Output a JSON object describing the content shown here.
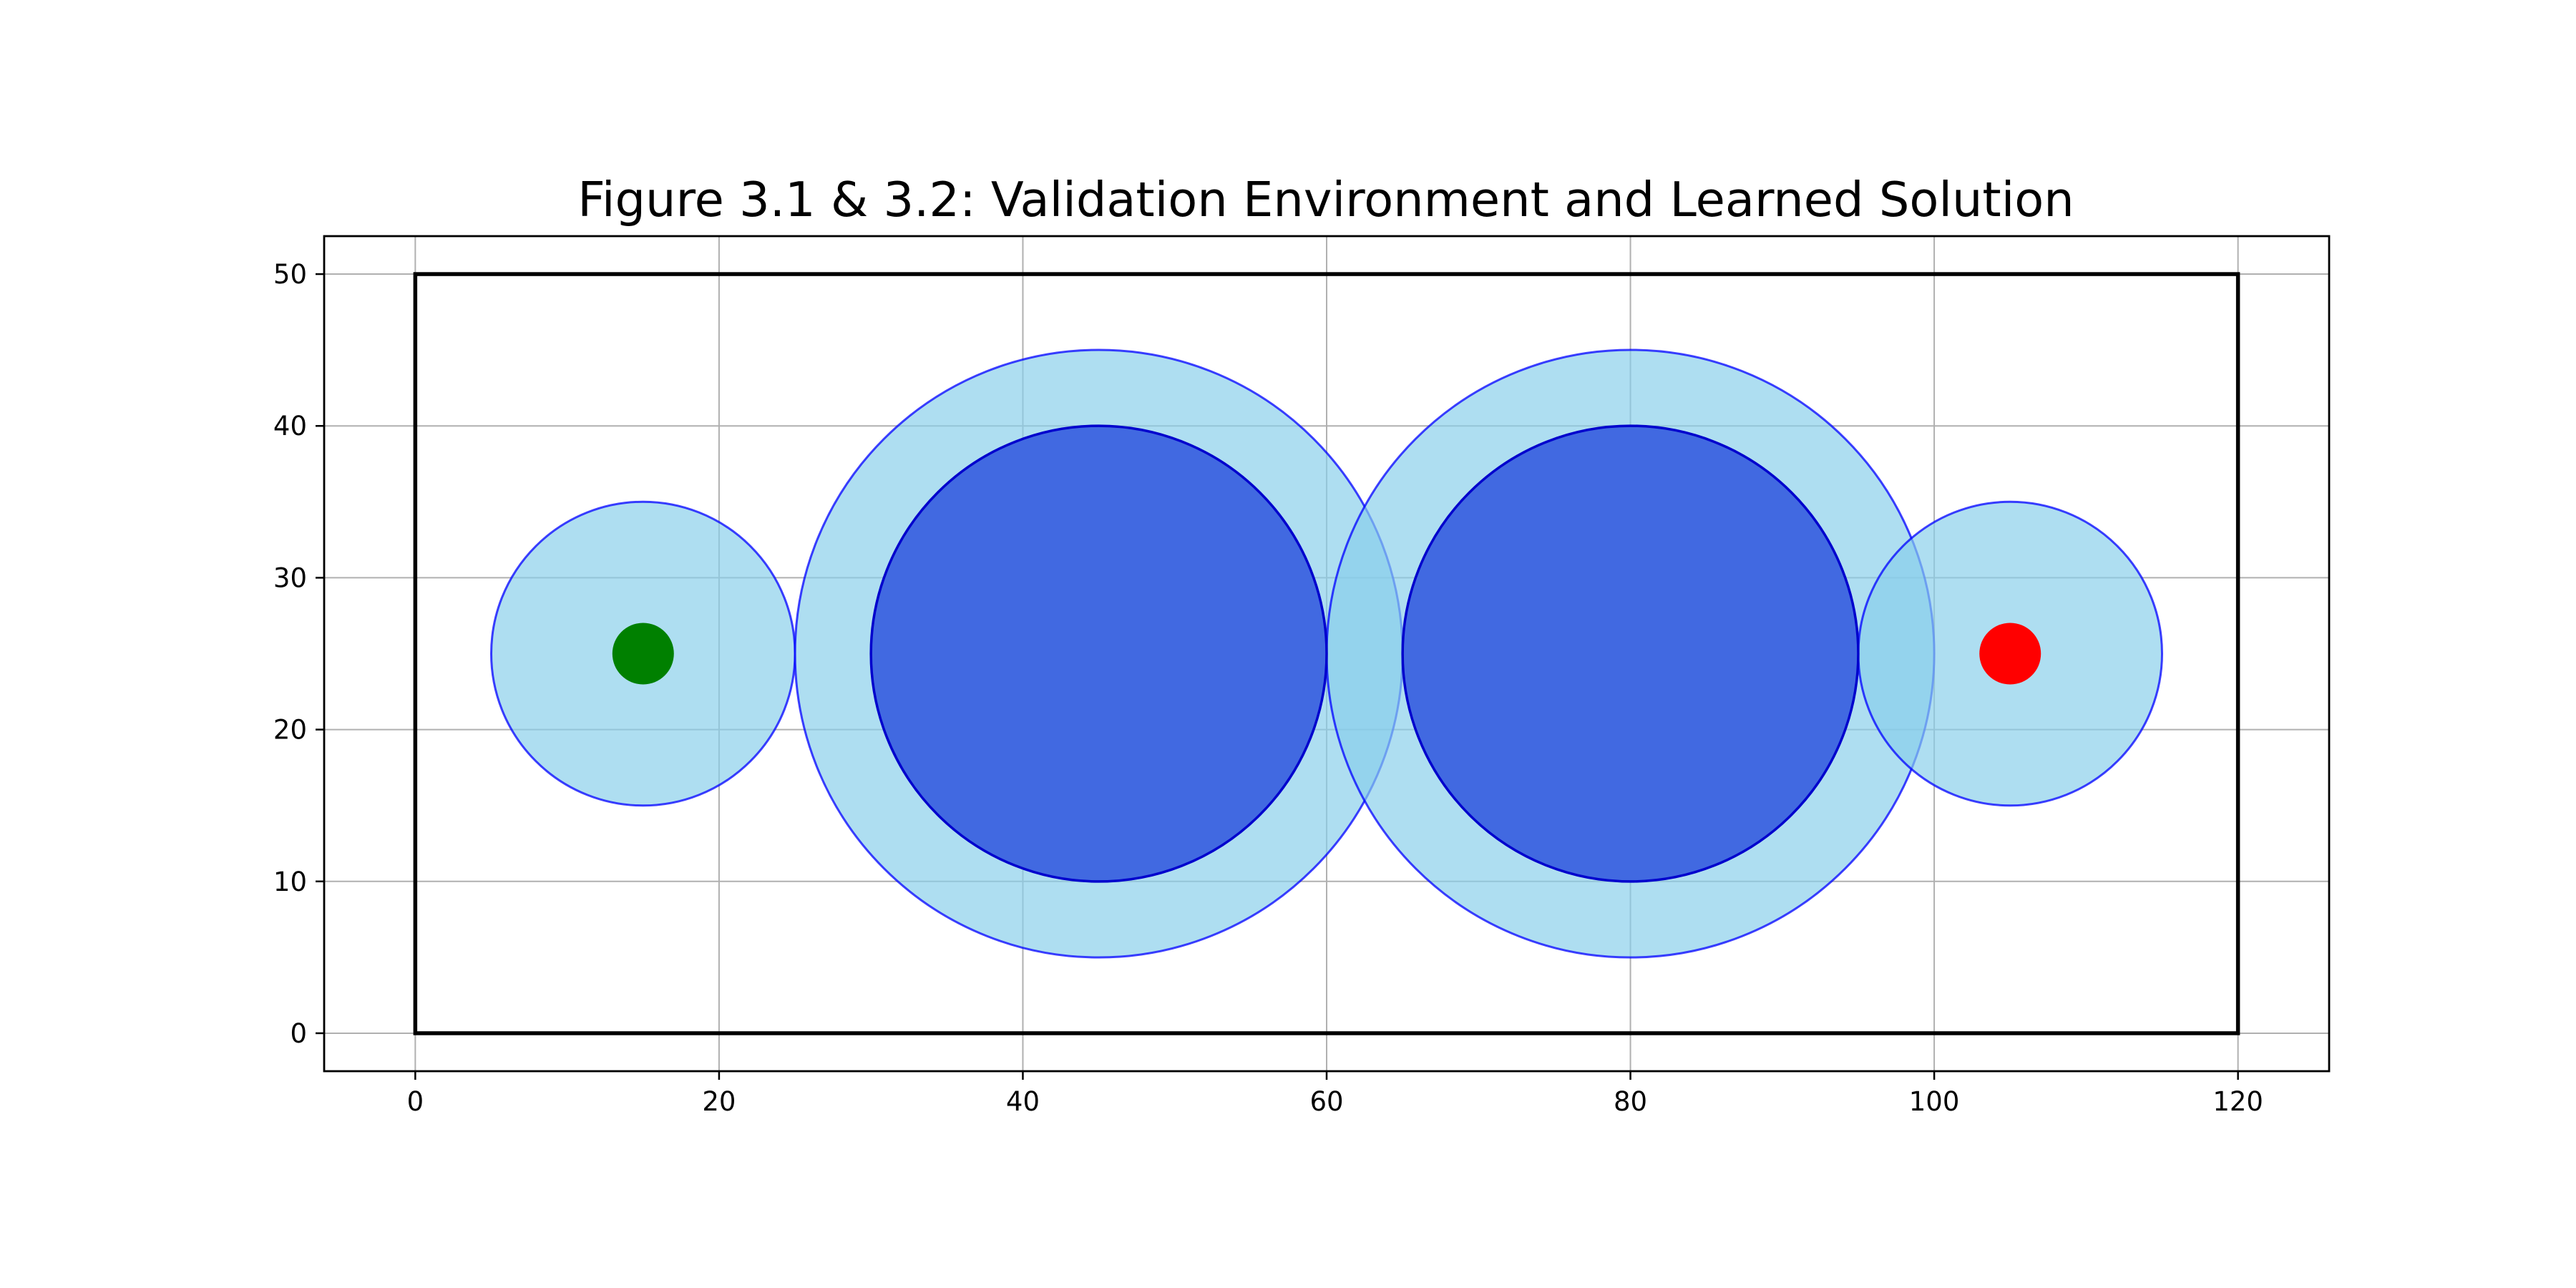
{
  "chart_data": {
    "type": "scatter",
    "title": "Figure 3.1 & 3.2: Validation Environment and Learned Solution",
    "xlabel": "",
    "ylabel": "",
    "xlim": [
      -6,
      126
    ],
    "ylim": [
      -2.5,
      52.5
    ],
    "xticks": [
      0,
      20,
      40,
      60,
      80,
      100,
      120
    ],
    "yticks": [
      0,
      10,
      20,
      30,
      40,
      50
    ],
    "grid": true,
    "boundary": {
      "x": [
        0,
        120
      ],
      "y": [
        0,
        50
      ],
      "color": "#000000"
    },
    "zones": [
      {
        "cx": 15,
        "cy": 25,
        "r": 10,
        "fill": "#87CEEB",
        "edge": "#0000FF"
      },
      {
        "cx": 45,
        "cy": 25,
        "r": 20,
        "fill": "#87CEEB",
        "edge": "#0000FF"
      },
      {
        "cx": 80,
        "cy": 25,
        "r": 20,
        "fill": "#87CEEB",
        "edge": "#0000FF"
      },
      {
        "cx": 105,
        "cy": 25,
        "r": 10,
        "fill": "#87CEEB",
        "edge": "#0000FF"
      }
    ],
    "obstacles": [
      {
        "cx": 45,
        "cy": 25,
        "r": 15,
        "fill": "#4169E1",
        "edge": "#0000CD"
      },
      {
        "cx": 80,
        "cy": 25,
        "r": 15,
        "fill": "#4169E1",
        "edge": "#0000CD"
      }
    ],
    "start": {
      "x": 15,
      "y": 25,
      "color": "#008000"
    },
    "goal": {
      "x": 105,
      "y": 25,
      "color": "#FF0000"
    }
  }
}
